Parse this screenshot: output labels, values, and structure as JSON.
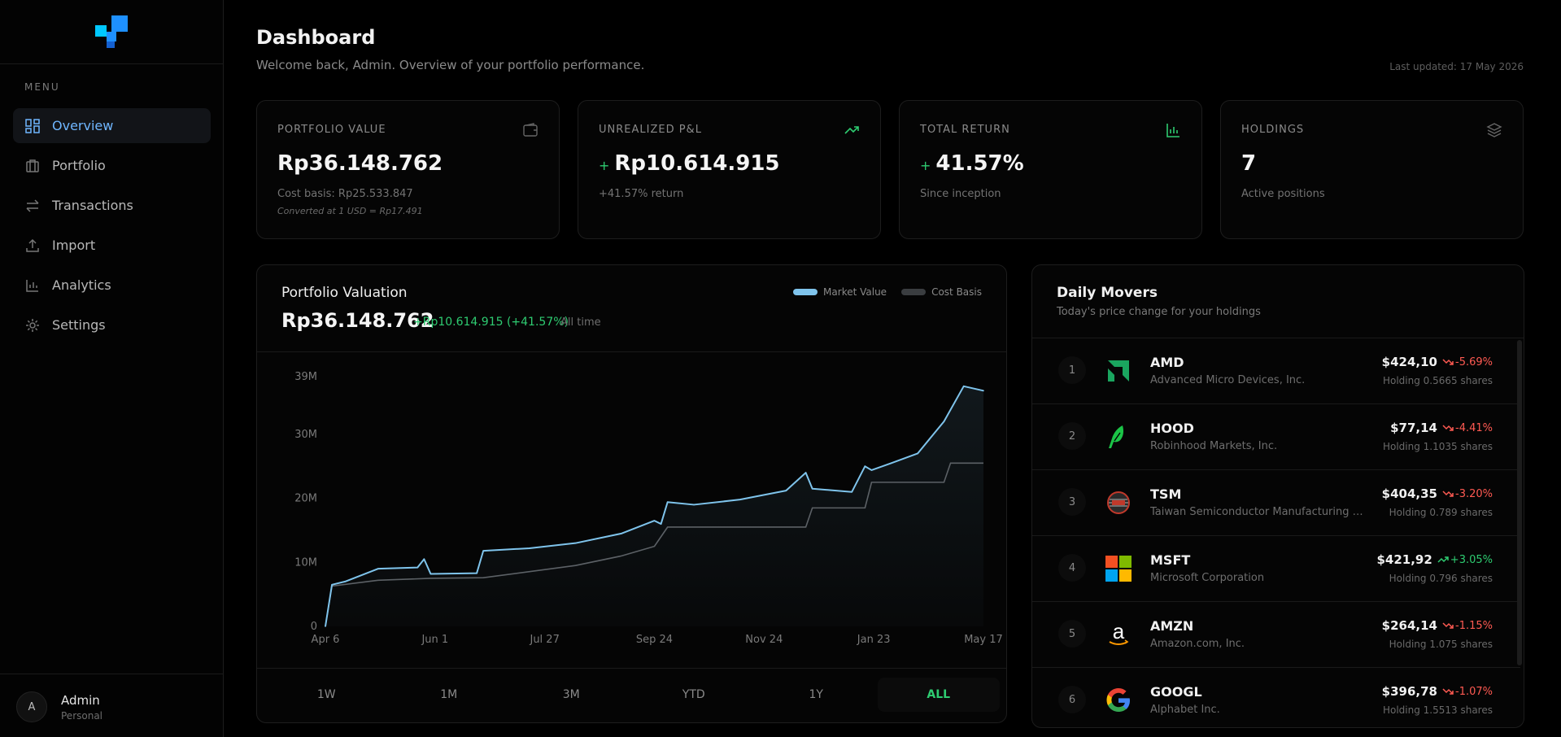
{
  "sidebar": {
    "menu_label": "MENU",
    "items": [
      {
        "label": "Overview",
        "icon": "dashboard-icon",
        "active": true
      },
      {
        "label": "Portfolio",
        "icon": "briefcase-icon"
      },
      {
        "label": "Transactions",
        "icon": "swap-icon"
      },
      {
        "label": "Import",
        "icon": "upload-icon"
      },
      {
        "label": "Analytics",
        "icon": "bar-chart-icon"
      },
      {
        "label": "Settings",
        "icon": "gear-icon"
      }
    ],
    "user": {
      "initial": "A",
      "name": "Admin",
      "role": "Personal"
    }
  },
  "header": {
    "title": "Dashboard",
    "subtitle": "Welcome back, Admin. Overview of your portfolio performance.",
    "last_updated": "Last updated: 17 May 2026"
  },
  "cards": [
    {
      "label": "PORTFOLIO VALUE",
      "value": "Rp36.148.762",
      "sub": "Cost basis: Rp25.533.847",
      "note": "Converted at 1 USD = Rp17.491",
      "icon": "wallet-icon"
    },
    {
      "label": "UNREALIZED P&L",
      "prefix": "+",
      "value": "Rp10.614.915",
      "sub": "+41.57% return",
      "icon": "trending-up-icon"
    },
    {
      "label": "TOTAL RETURN",
      "prefix": "+",
      "value": "41.57%",
      "sub": "Since inception",
      "icon": "bar-chart-icon"
    },
    {
      "label": "HOLDINGS",
      "value": "7",
      "sub": "Active positions",
      "icon": "layers-icon"
    }
  ],
  "valuation": {
    "title": "Portfolio Valuation",
    "amount": "Rp36.148.762",
    "change": "+Rp10.614.915 (+41.57%)",
    "period": "All time",
    "legend": [
      "Market Value",
      "Cost Basis"
    ],
    "ranges": [
      "1W",
      "1M",
      "3M",
      "YTD",
      "1Y",
      "ALL"
    ],
    "active_range": "ALL"
  },
  "chart_data": {
    "type": "area",
    "x_tick_labels": [
      "Apr 6",
      "Jun 1",
      "Jul 27",
      "Sep 24",
      "Nov 24",
      "Jan 23",
      "May 17"
    ],
    "y_tick_labels": [
      "0",
      "10M",
      "20M",
      "30M",
      "39M"
    ],
    "y_ticks": [
      0,
      10,
      20,
      30,
      39
    ],
    "ylim": [
      0,
      39
    ],
    "series": [
      {
        "name": "Market Value",
        "color": "#7fc4ec",
        "x": [
          0,
          0.01,
          0.03,
          0.08,
          0.14,
          0.15,
          0.16,
          0.23,
          0.24,
          0.31,
          0.38,
          0.45,
          0.5,
          0.51,
          0.52,
          0.56,
          0.63,
          0.7,
          0.73,
          0.74,
          0.8,
          0.82,
          0.83,
          0.86,
          0.9,
          0.94,
          0.97,
          1.0
        ],
        "values": [
          0,
          6.5,
          7,
          9,
          9.2,
          10.5,
          8.2,
          8.3,
          11.8,
          12.2,
          13,
          14.5,
          16.5,
          16,
          19.4,
          19,
          19.8,
          21.2,
          24,
          21.5,
          21,
          25,
          24.4,
          25.5,
          27,
          32,
          37.5,
          36.8
        ]
      },
      {
        "name": "Cost Basis",
        "color": "#5c6166",
        "x": [
          0,
          0.01,
          0.08,
          0.16,
          0.24,
          0.38,
          0.45,
          0.5,
          0.52,
          0.73,
          0.74,
          0.82,
          0.83,
          0.94,
          0.95,
          1.0
        ],
        "values": [
          0,
          6.3,
          7.2,
          7.5,
          7.6,
          9.5,
          11,
          12.5,
          15.5,
          15.5,
          18.5,
          18.5,
          22.5,
          22.5,
          25.5,
          25.5
        ]
      }
    ],
    "grid": false
  },
  "movers": {
    "title": "Daily Movers",
    "subtitle": "Today's price change for your holdings",
    "rows": [
      {
        "rank": "1",
        "ticker": "AMD",
        "name": "Advanced Micro Devices, Inc.",
        "price": "$424,10",
        "change": "-5.69%",
        "dir": "neg",
        "holding": "Holding 0.5665 shares",
        "logo": "amd-logo"
      },
      {
        "rank": "2",
        "ticker": "HOOD",
        "name": "Robinhood Markets, Inc.",
        "price": "$77,14",
        "change": "-4.41%",
        "dir": "neg",
        "holding": "Holding 1.1035 shares",
        "logo": "robinhood-logo"
      },
      {
        "rank": "3",
        "ticker": "TSM",
        "name": "Taiwan Semiconductor Manufacturing C...",
        "price": "$404,35",
        "change": "-3.20%",
        "dir": "neg",
        "holding": "Holding 0.789 shares",
        "logo": "tsmc-logo"
      },
      {
        "rank": "4",
        "ticker": "MSFT",
        "name": "Microsoft Corporation",
        "price": "$421,92",
        "change": "+3.05%",
        "dir": "pos",
        "holding": "Holding 0.796 shares",
        "logo": "microsoft-logo"
      },
      {
        "rank": "5",
        "ticker": "AMZN",
        "name": "Amazon.com, Inc.",
        "price": "$264,14",
        "change": "-1.15%",
        "dir": "neg",
        "holding": "Holding 1.075 shares",
        "logo": "amazon-logo"
      },
      {
        "rank": "6",
        "ticker": "GOOGL",
        "name": "Alphabet Inc.",
        "price": "$396,78",
        "change": "-1.07%",
        "dir": "neg",
        "holding": "Holding 1.5513 shares",
        "logo": "google-logo"
      }
    ]
  },
  "colors": {
    "accent": "#6fb6ff",
    "positive": "#2ecc71",
    "negative": "#ff5a52",
    "logo_blue": "#1e90ff",
    "logo_cyan": "#00c8ff"
  }
}
